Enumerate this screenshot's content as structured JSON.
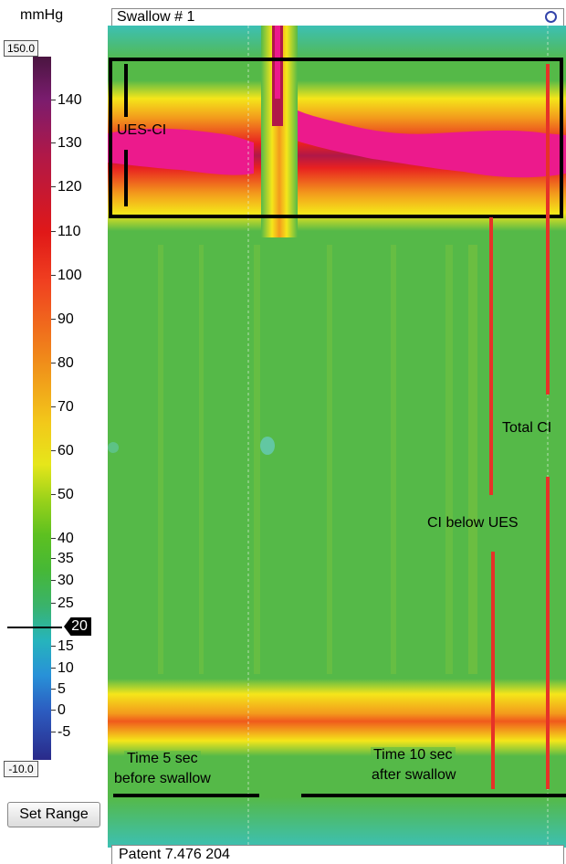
{
  "unit": "mmHg",
  "scale": {
    "max": "150.0",
    "min": "-10.0",
    "ticks": [
      "140",
      "130",
      "120",
      "110",
      "100",
      "90",
      "80",
      "70",
      "60",
      "50",
      "40",
      "35",
      "30",
      "25",
      "15",
      "10",
      "5",
      "0",
      "-5"
    ],
    "current_value": "20"
  },
  "colors": {
    "background_pressure": "#55b948",
    "high_pressure": "#ec1a8c",
    "band_red": "#e82020",
    "band_orange": "#f39a1c",
    "band_yellow": "#f5e61a",
    "annotation_red": "#e63228",
    "annotation_black": "#000000"
  },
  "buttons": {
    "set_range": "Set Range"
  },
  "plot": {
    "swallow_title": "Swallow # 1",
    "patient": "Patent 7.476 204",
    "annotations": {
      "ues_ci": "UES-CI",
      "total_ci": "Total CI",
      "ci_below_ues": "CI below UES",
      "time_before_line1": "Time 5 sec",
      "time_before_line2": "before swallow",
      "time_after_line1": "Time 10 sec",
      "time_after_line2": "after swallow"
    }
  }
}
